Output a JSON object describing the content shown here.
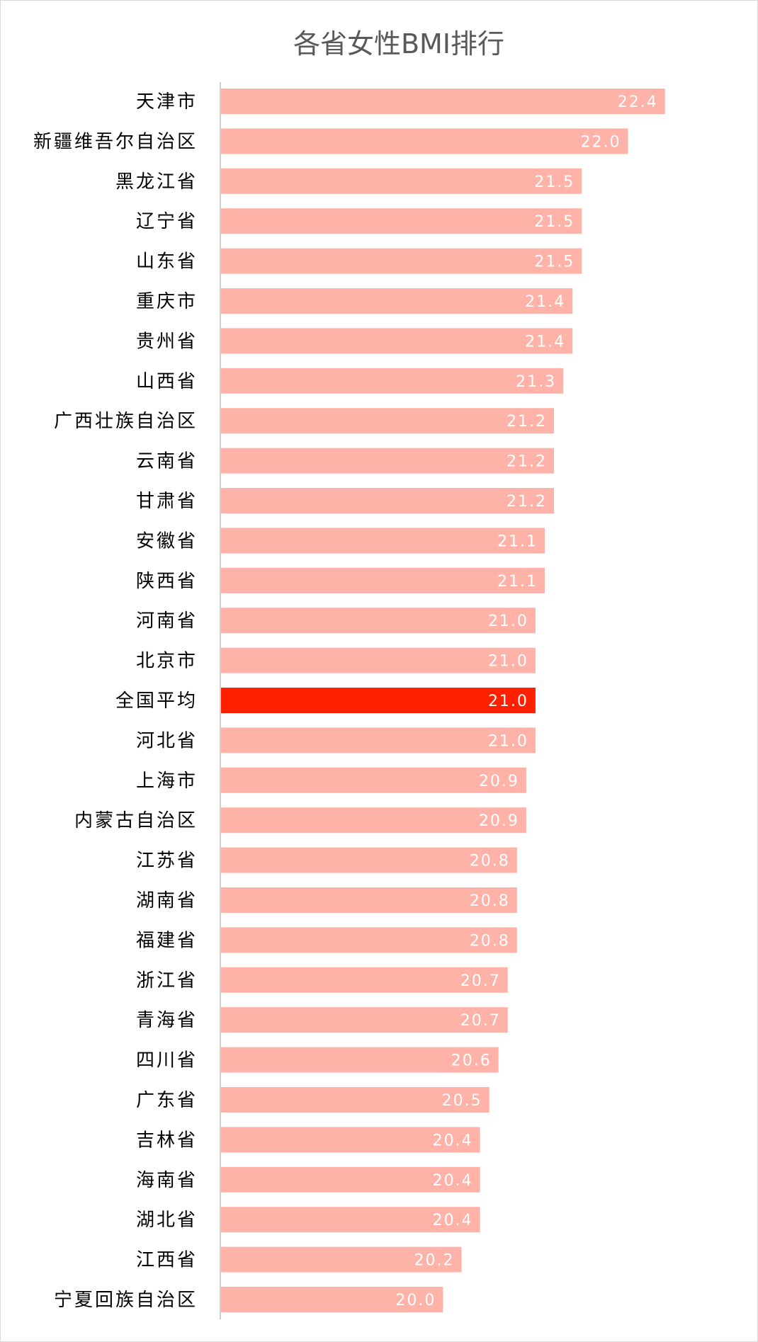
{
  "chart_data": {
    "type": "bar",
    "orientation": "horizontal",
    "title": "各省女性BMI排行",
    "xlabel": "",
    "ylabel": "",
    "xlim": [
      17.6,
      22.9
    ],
    "grid": false,
    "legend": "none",
    "bar_color": "#ffb3a8",
    "highlight_color": "#ff2000",
    "highlight_category": "全国平均",
    "categories": [
      "天津市",
      "新疆维吾尔自治区",
      "黑龙江省",
      "辽宁省",
      "山东省",
      "重庆市",
      "贵州省",
      "山西省",
      "广西壮族自治区",
      "云南省",
      "甘肃省",
      "安徽省",
      "陕西省",
      "河南省",
      "北京市",
      "全国平均",
      "河北省",
      "上海市",
      "内蒙古自治区",
      "江苏省",
      "湖南省",
      "福建省",
      "浙江省",
      "青海省",
      "四川省",
      "广东省",
      "吉林省",
      "海南省",
      "湖北省",
      "江西省",
      "宁夏回族自治区"
    ],
    "values": [
      22.4,
      22.0,
      21.5,
      21.5,
      21.5,
      21.4,
      21.4,
      21.3,
      21.2,
      21.2,
      21.2,
      21.1,
      21.1,
      21.0,
      21.0,
      21.0,
      21.0,
      20.9,
      20.9,
      20.8,
      20.8,
      20.8,
      20.7,
      20.7,
      20.6,
      20.5,
      20.4,
      20.4,
      20.4,
      20.2,
      20.0
    ],
    "labels": [
      "22.4",
      "22.0",
      "21.5",
      "21.5",
      "21.5",
      "21.4",
      "21.4",
      "21.3",
      "21.2",
      "21.2",
      "21.2",
      "21.1",
      "21.1",
      "21.0",
      "21.0",
      "21.0",
      "21.0",
      "20.9",
      "20.9",
      "20.8",
      "20.8",
      "20.8",
      "20.7",
      "20.7",
      "20.6",
      "20.5",
      "20.4",
      "20.4",
      "20.4",
      "20.2",
      "20.0"
    ]
  }
}
